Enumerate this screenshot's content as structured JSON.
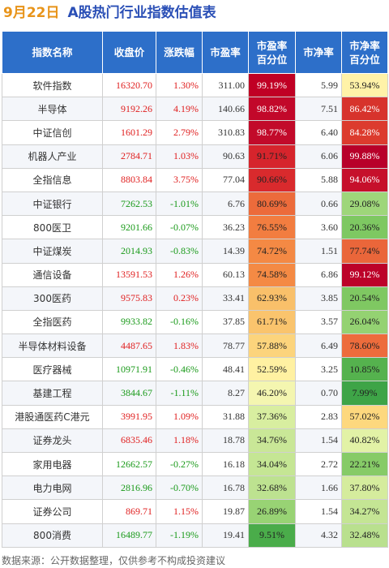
{
  "title": {
    "date": "9月22日",
    "text": "A股热门行业指数估值表"
  },
  "headers": {
    "name": "指数名称",
    "close": "收盘价",
    "change": "涨跌幅",
    "pe": "市盈率",
    "pe_pct_1": "市盈率",
    "pe_pct_2": "百分位",
    "pb": "市净率",
    "pb_pct_1": "市净率",
    "pb_pct_2": "百分位"
  },
  "rows": [
    {
      "name": "软件指数",
      "close": "16320.70",
      "change": "1.30%",
      "dir": "up",
      "pe": "311.00",
      "pe_pct": "99.19%",
      "pe_bg": "#c00024",
      "pe_light": true,
      "pb": "5.99",
      "pb_pct": "53.94%",
      "pb_bg": "#fff2a8",
      "pb_light": false
    },
    {
      "name": "半导体",
      "close": "9192.26",
      "change": "4.19%",
      "dir": "up",
      "pe": "140.66",
      "pe_pct": "98.82%",
      "pe_bg": "#c2082a",
      "pe_light": true,
      "pb": "7.51",
      "pb_pct": "86.42%",
      "pb_bg": "#d7332c",
      "pb_light": true
    },
    {
      "name": "中证信创",
      "close": "1601.29",
      "change": "2.79%",
      "dir": "up",
      "pe": "310.83",
      "pe_pct": "98.77%",
      "pe_bg": "#c20a2a",
      "pe_light": true,
      "pb": "6.40",
      "pb_pct": "84.28%",
      "pb_bg": "#dc3b2e",
      "pb_light": true
    },
    {
      "name": "机器人产业",
      "close": "2784.71",
      "change": "1.03%",
      "dir": "up",
      "pe": "90.63",
      "pe_pct": "91.71%",
      "pe_bg": "#d6242c",
      "pe_light": false,
      "pb": "6.06",
      "pb_pct": "99.88%",
      "pb_bg": "#b8002a",
      "pb_light": true
    },
    {
      "name": "全指信息",
      "close": "8803.84",
      "change": "3.75%",
      "dir": "up",
      "pe": "77.04",
      "pe_pct": "90.66%",
      "pe_bg": "#d92a2d",
      "pe_light": false,
      "pb": "5.88",
      "pb_pct": "94.06%",
      "pb_bg": "#c6102b",
      "pb_light": true
    },
    {
      "name": "中证银行",
      "close": "7262.53",
      "change": "-1.01%",
      "dir": "down",
      "pe": "6.76",
      "pe_pct": "80.69%",
      "pe_bg": "#ec6b3b",
      "pe_light": false,
      "pb": "0.66",
      "pb_pct": "29.08%",
      "pb_bg": "#9ed67a",
      "pb_light": false
    },
    {
      "name": "800医卫",
      "close": "9201.66",
      "change": "-0.07%",
      "dir": "down",
      "pe": "36.23",
      "pe_pct": "76.55%",
      "pe_bg": "#f27d40",
      "pe_light": false,
      "pb": "3.60",
      "pb_pct": "20.36%",
      "pb_bg": "#7ec862",
      "pb_light": false
    },
    {
      "name": "中证煤炭",
      "close": "2014.93",
      "change": "-0.83%",
      "dir": "down",
      "pe": "14.39",
      "pe_pct": "74.72%",
      "pe_bg": "#f48944",
      "pe_light": false,
      "pb": "1.51",
      "pb_pct": "77.74%",
      "pb_bg": "#ea663a",
      "pb_light": false
    },
    {
      "name": "通信设备",
      "close": "13591.53",
      "change": "1.26%",
      "dir": "up",
      "pe": "60.13",
      "pe_pct": "74.58%",
      "pe_bg": "#f48a44",
      "pe_light": false,
      "pb": "6.86",
      "pb_pct": "99.12%",
      "pb_bg": "#bc0229",
      "pb_light": true
    },
    {
      "name": "300医药",
      "close": "9575.83",
      "change": "0.23%",
      "dir": "up",
      "pe": "33.41",
      "pe_pct": "62.93%",
      "pe_bg": "#f9c06a",
      "pe_light": false,
      "pb": "3.85",
      "pb_pct": "20.54%",
      "pb_bg": "#7fc862",
      "pb_light": false
    },
    {
      "name": "全指医药",
      "close": "9933.82",
      "change": "-0.16%",
      "dir": "down",
      "pe": "37.85",
      "pe_pct": "61.71%",
      "pe_bg": "#fac46d",
      "pe_light": false,
      "pb": "3.57",
      "pb_pct": "26.04%",
      "pb_bg": "#94d272",
      "pb_light": false
    },
    {
      "name": "半导体材料设备",
      "close": "4487.65",
      "change": "1.83%",
      "dir": "up",
      "pe": "78.77",
      "pe_pct": "57.88%",
      "pe_bg": "#fcd47c",
      "pe_light": false,
      "pb": "6.49",
      "pb_pct": "78.60%",
      "pb_bg": "#ed6c3c",
      "pb_light": false
    },
    {
      "name": "医疗器械",
      "close": "10971.91",
      "change": "-0.46%",
      "dir": "down",
      "pe": "48.41",
      "pe_pct": "52.59%",
      "pe_bg": "#fff1a2",
      "pe_light": false,
      "pb": "3.25",
      "pb_pct": "10.85%",
      "pb_bg": "#55b24e",
      "pb_light": false
    },
    {
      "name": "基建工程",
      "close": "3844.67",
      "change": "-1.11%",
      "dir": "down",
      "pe": "8.27",
      "pe_pct": "46.20%",
      "pe_bg": "#f4f6b0",
      "pe_light": false,
      "pb": "0.70",
      "pb_pct": "7.99%",
      "pb_bg": "#3ea447",
      "pb_light": false
    },
    {
      "name": "港股通医药C港元",
      "close": "3991.95",
      "change": "1.09%",
      "dir": "up",
      "pe": "31.88",
      "pe_pct": "37.36%",
      "pe_bg": "#d8eea0",
      "pe_light": false,
      "pb": "2.83",
      "pb_pct": "57.02%",
      "pb_bg": "#fdd87e",
      "pb_light": false
    },
    {
      "name": "证券龙头",
      "close": "6835.46",
      "change": "1.18%",
      "dir": "up",
      "pe": "18.78",
      "pe_pct": "34.76%",
      "pe_bg": "#c9e797",
      "pe_light": false,
      "pb": "1.54",
      "pb_pct": "40.82%",
      "pb_bg": "#e2f2a6",
      "pb_light": false
    },
    {
      "name": "家用电器",
      "close": "12662.57",
      "change": "-0.27%",
      "dir": "down",
      "pe": "16.18",
      "pe_pct": "34.04%",
      "pe_bg": "#c5e694",
      "pe_light": false,
      "pb": "2.72",
      "pb_pct": "22.21%",
      "pb_bg": "#86cb67",
      "pb_light": false
    },
    {
      "name": "电力电网",
      "close": "2816.96",
      "change": "-0.70%",
      "dir": "down",
      "pe": "16.78",
      "pe_pct": "32.68%",
      "pe_bg": "#bde290",
      "pe_light": false,
      "pb": "1.66",
      "pb_pct": "37.80%",
      "pb_bg": "#d5ec9d",
      "pb_light": false
    },
    {
      "name": "证券公司",
      "close": "869.71",
      "change": "1.15%",
      "dir": "up",
      "pe": "19.87",
      "pe_pct": "26.89%",
      "pe_bg": "#98d374",
      "pe_light": false,
      "pb": "1.54",
      "pb_pct": "34.27%",
      "pb_bg": "#c4e594",
      "pb_light": false
    },
    {
      "name": "800消费",
      "close": "16489.77",
      "change": "-1.19%",
      "dir": "down",
      "pe": "19.41",
      "pe_pct": "9.51%",
      "pe_bg": "#4aac4a",
      "pe_light": false,
      "pb": "4.32",
      "pb_pct": "32.48%",
      "pb_bg": "#b9e08e",
      "pb_light": false
    }
  ],
  "footer": "数据来源：公开数据整理，仅供参考不构成投资建议"
}
